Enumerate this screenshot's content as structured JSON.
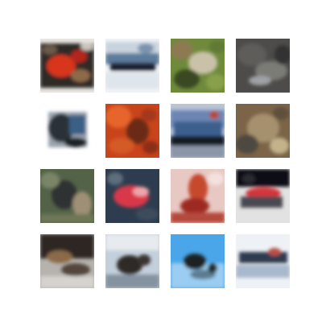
{
  "grid": {
    "rows": 4,
    "columns": 4,
    "tiles": [
      {
        "subject": "red-flower-on-dark",
        "colors": [
          "#2d2a26",
          "#d7341f",
          "#8d6a4a",
          "#e9e6e2"
        ]
      },
      {
        "subject": "blurred-landscape-blue",
        "colors": [
          "#f1f3f6",
          "#5d7b9c",
          "#1c2433",
          "#c8d3de"
        ]
      },
      {
        "subject": "green-foliage",
        "colors": [
          "#6f8a3b",
          "#c9c2a9",
          "#8d7a52",
          "#3a4a24"
        ]
      },
      {
        "subject": "gray-stone",
        "colors": [
          "#4d4c4a",
          "#7c7b76",
          "#9fa2a6",
          "#323231"
        ]
      },
      {
        "subject": "dark-object-on-white",
        "colors": [
          "#ffffff",
          "#2b3039",
          "#3a5e85",
          "#9aa3ad"
        ]
      },
      {
        "subject": "orange-red-abstract",
        "colors": [
          "#c9441b",
          "#e5652b",
          "#a4381b",
          "#6a2b17"
        ]
      },
      {
        "subject": "blue-vehicle",
        "colors": [
          "#3e5e8e",
          "#6c85b2",
          "#151a22",
          "#b84734"
        ]
      },
      {
        "subject": "brown-muted",
        "colors": [
          "#7b6448",
          "#a6916e",
          "#4e4a41",
          "#c3b28a"
        ]
      },
      {
        "subject": "green-dark-animal",
        "colors": [
          "#546348",
          "#2e3130",
          "#7a8566",
          "#9e8f76"
        ]
      },
      {
        "subject": "red-car-pink",
        "colors": [
          "#2d3d4f",
          "#d9384a",
          "#f0a5aa",
          "#5d6e7c"
        ]
      },
      {
        "subject": "red-figure-pink",
        "colors": [
          "#e8c8c3",
          "#c6482d",
          "#9d2a21",
          "#f2e2de"
        ]
      },
      {
        "subject": "red-object-dark",
        "colors": [
          "#0f0f12",
          "#d3343a",
          "#e2e2e2",
          "#4a4a52"
        ]
      },
      {
        "subject": "dark-brown-scene",
        "colors": [
          "#2d2823",
          "#8a6a4a",
          "#b6b3af",
          "#52473d"
        ]
      },
      {
        "subject": "dark-animal-on-sky",
        "colors": [
          "#c3cfdb",
          "#2d2a26",
          "#8593a1",
          "#e7ebef"
        ]
      },
      {
        "subject": "dark-animal-on-blue",
        "colors": [
          "#4aa6e8",
          "#1d2123",
          "#9bcdf2",
          "#5b7d91"
        ]
      },
      {
        "subject": "dark-object-on-sky",
        "colors": [
          "#eef2f6",
          "#2e3a4f",
          "#a9b9cc",
          "#b95048"
        ]
      }
    ]
  }
}
